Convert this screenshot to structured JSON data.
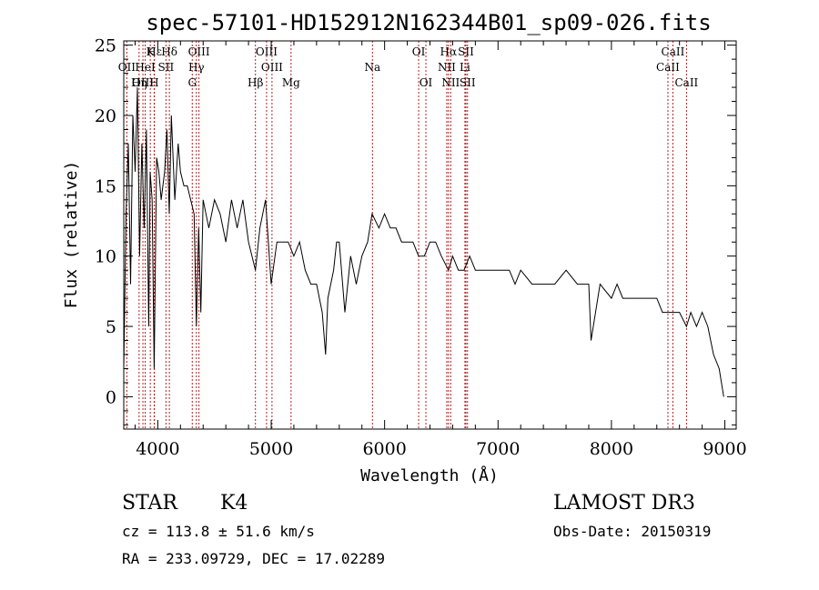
{
  "chart_data": {
    "type": "line",
    "title": "spec-57101-HD152912N162344B01_sp09-026.fits",
    "xlabel": "Wavelength (Å)",
    "ylabel": "Flux (relative)",
    "xlim": [
      3700,
      9100
    ],
    "ylim": [
      -2.3,
      25.3
    ],
    "xticks": [
      4000,
      5000,
      6000,
      7000,
      8000,
      9000
    ],
    "yticks": [
      0,
      5,
      10,
      15,
      20,
      25
    ],
    "series": [
      {
        "name": "flux",
        "x": [
          3700,
          3720,
          3740,
          3760,
          3780,
          3800,
          3820,
          3840,
          3860,
          3880,
          3900,
          3920,
          3933,
          3950,
          3968,
          3990,
          4010,
          4030,
          4060,
          4080,
          4101,
          4120,
          4150,
          4180,
          4200,
          4230,
          4260,
          4290,
          4320,
          4340,
          4360,
          4380,
          4400,
          4450,
          4500,
          4550,
          4600,
          4650,
          4700,
          4750,
          4800,
          4861,
          4900,
          4950,
          5000,
          5050,
          5100,
          5150,
          5200,
          5250,
          5300,
          5350,
          5400,
          5450,
          5480,
          5500,
          5550,
          5577,
          5600,
          5650,
          5700,
          5750,
          5800,
          5850,
          5890,
          5950,
          6000,
          6050,
          6100,
          6150,
          6200,
          6250,
          6300,
          6350,
          6400,
          6450,
          6500,
          6563,
          6600,
          6650,
          6700,
          6750,
          6800,
          6850,
          6900,
          6950,
          7000,
          7050,
          7100,
          7150,
          7200,
          7300,
          7400,
          7500,
          7600,
          7700,
          7800,
          7820,
          7900,
          8000,
          8050,
          8100,
          8200,
          8300,
          8400,
          8450,
          8500,
          8542,
          8600,
          8662,
          8700,
          8750,
          8800,
          8850,
          8900,
          8950,
          8990
        ],
        "y": [
          2,
          13,
          18,
          8,
          20,
          16,
          22,
          10,
          18,
          12,
          19,
          5,
          16,
          14,
          2,
          17,
          16,
          14,
          16,
          19,
          13,
          20,
          14,
          18,
          16,
          15,
          15,
          14,
          13,
          5,
          12,
          6,
          14,
          12,
          14,
          13,
          11,
          14,
          12,
          14,
          11,
          9,
          12,
          14,
          8,
          11,
          11,
          11,
          10,
          11,
          9,
          8,
          8,
          6,
          3,
          7,
          9,
          11,
          11,
          6,
          10,
          8,
          10,
          11,
          13,
          12,
          13,
          12,
          12,
          11,
          11,
          11,
          10,
          10,
          11,
          11,
          10,
          9,
          10,
          9,
          9,
          10,
          9,
          9,
          9,
          9,
          9,
          9,
          9,
          8,
          9,
          8,
          8,
          8,
          9,
          8,
          8,
          4,
          8,
          7,
          8,
          7,
          7,
          7,
          7,
          6,
          6,
          6,
          6,
          5,
          6,
          5,
          6,
          5,
          3,
          2,
          0
        ]
      }
    ],
    "spectral_lines": [
      {
        "label": "Hε",
        "x": 3970,
        "row": 0
      },
      {
        "label": "K",
        "x": 3934,
        "row": 0
      },
      {
        "label": "Hδ",
        "x": 4102,
        "row": 0
      },
      {
        "label": "OIII",
        "x": 4363,
        "row": 0
      },
      {
        "label": "OIII",
        "x": 4959,
        "row": 0
      },
      {
        "label": "OI",
        "x": 6300,
        "row": 0
      },
      {
        "label": "Hα",
        "x": 6563,
        "row": 0
      },
      {
        "label": "SII",
        "x": 6717,
        "row": 0
      },
      {
        "label": "CaII",
        "x": 8542,
        "row": 0
      },
      {
        "label": "OII",
        "x": 3727,
        "row": 1
      },
      {
        "label": "HeI",
        "x": 3889,
        "row": 1
      },
      {
        "label": "SII",
        "x": 4072,
        "row": 1
      },
      {
        "label": "Hγ",
        "x": 4340,
        "row": 1
      },
      {
        "label": "OIII",
        "x": 5007,
        "row": 1
      },
      {
        "label": "Na",
        "x": 5893,
        "row": 1
      },
      {
        "label": "NII",
        "x": 6548,
        "row": 1
      },
      {
        "label": "Li",
        "x": 6708,
        "row": 1
      },
      {
        "label": "CaII",
        "x": 8498,
        "row": 1
      },
      {
        "label": "OIII",
        "x": 3869,
        "row": 2
      },
      {
        "label": "Hη",
        "x": 3835,
        "row": 2
      },
      {
        "label": "H",
        "x": 3968,
        "row": 2
      },
      {
        "label": "G",
        "x": 4304,
        "row": 2
      },
      {
        "label": "Hβ",
        "x": 4861,
        "row": 2
      },
      {
        "label": "Mg",
        "x": 5175,
        "row": 2
      },
      {
        "label": "OI",
        "x": 6364,
        "row": 2
      },
      {
        "label": "NII",
        "x": 6583,
        "row": 2
      },
      {
        "label": "SII",
        "x": 6731,
        "row": 2
      },
      {
        "label": "CaII",
        "x": 8662,
        "row": 2
      }
    ]
  },
  "info": {
    "object_type": "STAR",
    "subclass": "K4",
    "survey": "LAMOST DR3",
    "cz": "cz = 113.8 ± 51.6 km/s",
    "obs_date": "Obs-Date: 20150319",
    "coords": "RA = 233.09729, DEC =  17.02289"
  },
  "colors": {
    "line_marker": "#b22222",
    "spectrum": "#000000",
    "axes": "#000000"
  }
}
